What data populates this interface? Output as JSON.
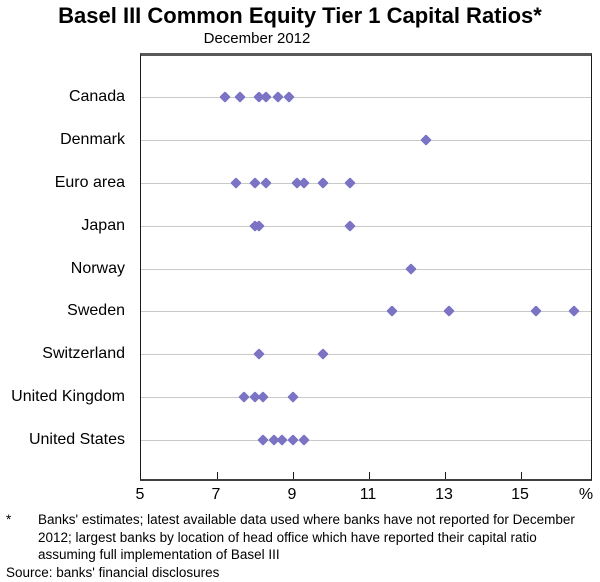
{
  "footnote": {
    "marker": "*",
    "text": "Banks' estimates; latest available data used where banks have not reported for December 2012; largest banks by location of head office which have reported their capital ratio assuming full implementation of Basel III",
    "source": "Source: banks' financial disclosures"
  },
  "colors": {
    "diamond": "#7b74c4",
    "gridline": "#c9c9c9",
    "top_border": "#59595b",
    "axis": "#1a1a1a"
  },
  "chart_data": {
    "type": "scatter",
    "variant": "horizontal-dot-plot",
    "title": "Basel III Common Equity Tier 1 Capital Ratios*",
    "subtitle": "December 2012",
    "marker": "diamond",
    "categories": [
      "Canada",
      "Denmark",
      "Euro area",
      "Japan",
      "Norway",
      "Sweden",
      "Switzerland",
      "United Kingdom",
      "United States"
    ],
    "series": [
      {
        "name": "Canada",
        "values": [
          7.2,
          7.6,
          8.1,
          8.3,
          8.6,
          8.9
        ]
      },
      {
        "name": "Denmark",
        "values": [
          12.5
        ]
      },
      {
        "name": "Euro area",
        "values": [
          7.5,
          8.0,
          8.3,
          9.1,
          9.3,
          9.8,
          10.5
        ]
      },
      {
        "name": "Japan",
        "values": [
          8.0,
          8.1,
          10.5
        ]
      },
      {
        "name": "Norway",
        "values": [
          12.1
        ]
      },
      {
        "name": "Sweden",
        "values": [
          11.6,
          13.1,
          15.4,
          16.4
        ]
      },
      {
        "name": "Switzerland",
        "values": [
          8.1,
          9.8
        ]
      },
      {
        "name": "United Kingdom",
        "values": [
          7.7,
          8.0,
          8.2,
          9.0
        ]
      },
      {
        "name": "United States",
        "values": [
          8.2,
          8.5,
          8.7,
          9.0,
          9.3
        ]
      }
    ],
    "x_axis": {
      "min": 5,
      "max": 16.8,
      "ticks": [
        5,
        7,
        9,
        11,
        13,
        15
      ],
      "unit": "%",
      "grid": "horizontal-row-lines",
      "legend": "none"
    }
  }
}
